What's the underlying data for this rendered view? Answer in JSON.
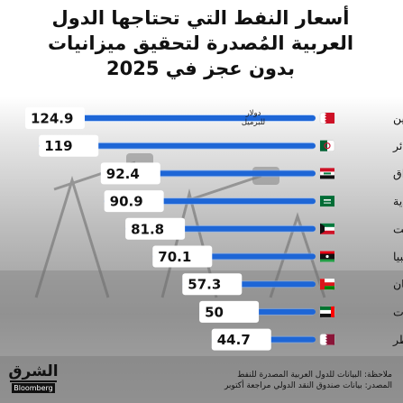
{
  "title_lines": [
    "أسعار النفط التي تحتاجها الدول",
    "العربية المُصدرة لتحقيق ميزانيات",
    "بدون عجز في 2025"
  ],
  "unit_label": [
    "دولار",
    "للبرميل"
  ],
  "chart_data": {
    "type": "bar",
    "orientation": "horizontal",
    "title": "أسعار النفط التي تحتاجها الدول العربية المُصدرة لتحقيق ميزانيات بدون عجز في 2025",
    "categories": [
      "البحرين",
      "الجزائر",
      "العراق",
      "السعودية",
      "الكويت",
      "ليبيا",
      "عُمان",
      "الإمارات",
      "قطر"
    ],
    "values": [
      124.9,
      119,
      92.4,
      90.9,
      81.8,
      70.1,
      57.3,
      50,
      44.7
    ],
    "value_labels": [
      "124.9",
      "119",
      "92.4",
      "90.9",
      "81.8",
      "70.1",
      "57.3",
      "50",
      "44.7"
    ],
    "unit": "دولار للبرميل",
    "xlim": [
      0,
      124.9
    ],
    "grid": false,
    "legend": "none",
    "bar_color": "#1e66d6",
    "bar_glow_color": "#7fb4ff",
    "flags": [
      "bahrain-flag-icon",
      "algeria-flag-icon",
      "iraq-flag-icon",
      "saudi-flag-icon",
      "kuwait-flag-icon",
      "libya-flag-icon",
      "oman-flag-icon",
      "uae-flag-icon",
      "qatar-flag-icon"
    ]
  },
  "logo": {
    "main": "الشرق",
    "sub": "Bloomberg"
  },
  "notes": [
    "ملاحظة: البيانات للدول العربية المصدرة للنفط",
    "المصدر: بيانات صندوق النقد الدولي مراجعة أكتوبر"
  ]
}
